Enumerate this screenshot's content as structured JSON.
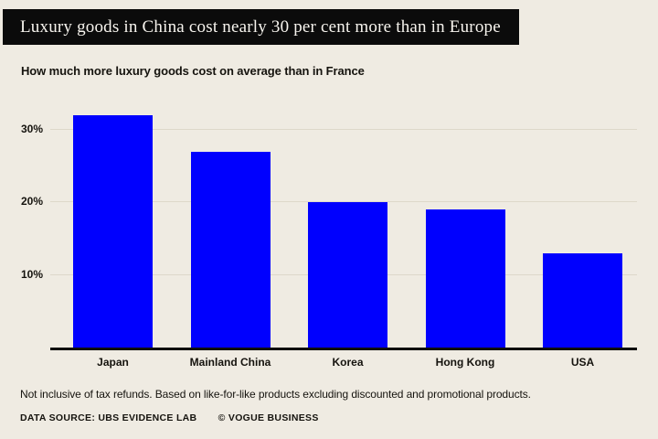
{
  "page": {
    "background": "#efebe2",
    "text_color": "#15130e"
  },
  "header": {
    "title": "Luxury goods in China cost nearly 30 per cent more than in Europe",
    "bar_color": "#0b0b0b",
    "text_color": "#f7f4ee"
  },
  "subtitle": "How much more luxury goods cost on average than in France",
  "chart_data": {
    "type": "bar",
    "categories": [
      "Japan",
      "Mainland China",
      "Korea",
      "Hong Kong",
      "USA"
    ],
    "values": [
      32,
      27,
      20,
      19,
      13
    ],
    "unit": "%",
    "title": "How much more luxury goods cost on average than in France",
    "xlabel": "",
    "ylabel": "",
    "ylim": [
      0,
      34
    ],
    "yticks": [
      10,
      20,
      30
    ],
    "ytick_labels": [
      "10%",
      "20%",
      "30%"
    ],
    "grid": true,
    "legend": "none",
    "bar_color": "#0000fe",
    "gridline_color": "#ddd8ca",
    "axis_color": "#0d0d0d"
  },
  "footnote": "Not inclusive of tax refunds. Based on like-for-like products excluding discounted and promotional products.",
  "source": {
    "data_source": "DATA SOURCE: UBS EVIDENCE LAB",
    "credit": "© VOGUE BUSINESS"
  }
}
